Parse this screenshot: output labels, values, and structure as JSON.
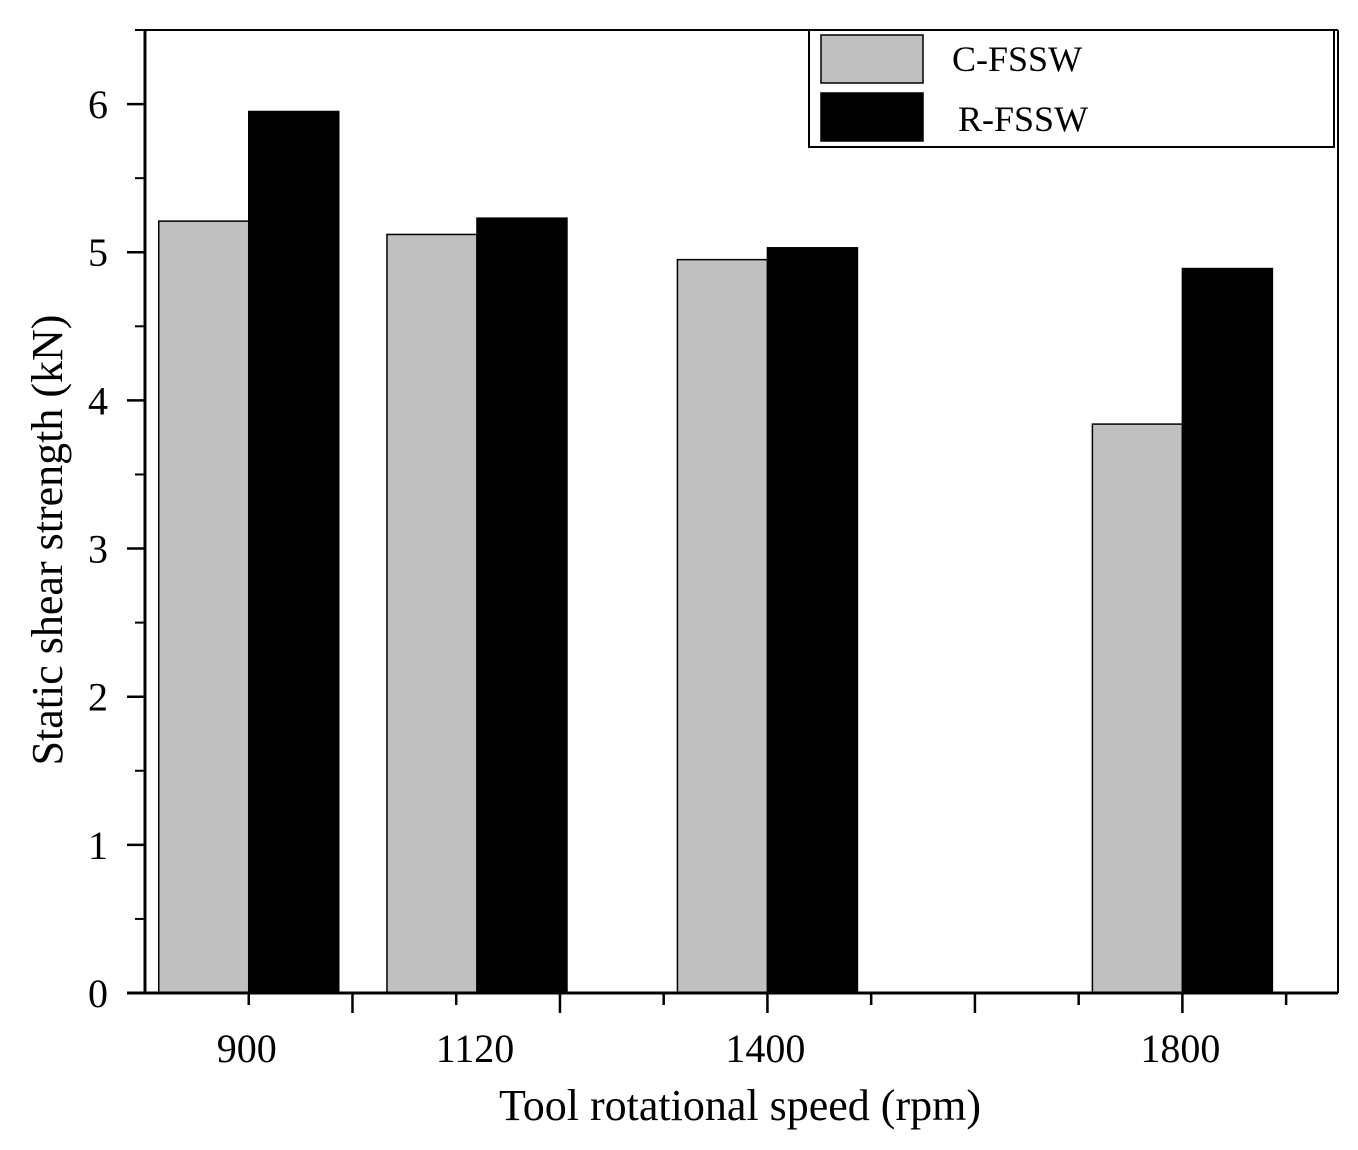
{
  "chart_data": {
    "type": "bar",
    "title": "",
    "xlabel": "Tool rotational speed (rpm)",
    "ylabel": "Static shear strength (kN)",
    "ylim": [
      0,
      6.5
    ],
    "yticks": [
      "0",
      "1",
      "2",
      "3",
      "4",
      "5",
      "6"
    ],
    "categories": [
      "900",
      "1120",
      "1400",
      "1800"
    ],
    "x_values": [
      900,
      1120,
      1400,
      1800
    ],
    "xlim": [
      800,
      1950
    ],
    "series": [
      {
        "name": "C-FSSW",
        "color": "#c0c0c0",
        "values": [
          5.21,
          5.12,
          4.95,
          3.84
        ]
      },
      {
        "name": "R-FSSW",
        "color": "#000000",
        "values": [
          5.95,
          5.23,
          5.03,
          4.89
        ]
      }
    ],
    "legend_position": "top-right",
    "grid": false
  }
}
